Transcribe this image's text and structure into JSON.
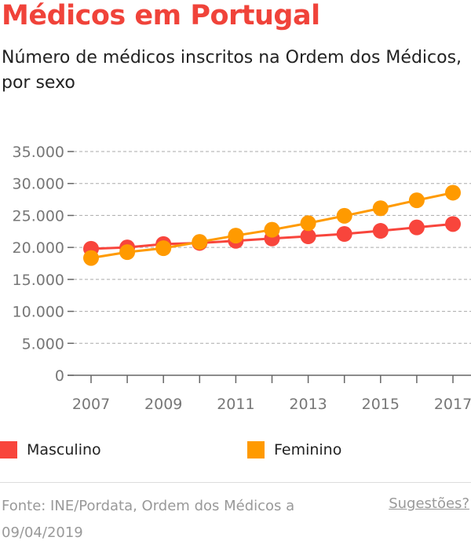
{
  "title": "Médicos em Portugal",
  "subtitle": "Número de médicos inscritos na Ordem dos Médicos, por sexo",
  "source": "Fonte: INE/Pordata, Ordem dos Médicos a 09/04/2019",
  "suggestions": "Sugestões?",
  "chart_data": {
    "type": "line",
    "x": [
      2007,
      2008,
      2009,
      2010,
      2011,
      2012,
      2013,
      2014,
      2015,
      2016,
      2017
    ],
    "xticks": [
      "2007",
      "2009",
      "2011",
      "2013",
      "2015",
      "2017"
    ],
    "yticks": [
      "0",
      "5.000",
      "10.000",
      "15.000",
      "20.000",
      "25.000",
      "30.000",
      "35.000"
    ],
    "ylim": [
      0,
      35000
    ],
    "grid": true,
    "legend": "bottom",
    "series": [
      {
        "name": "Masculino",
        "color": "#f8453c",
        "values": [
          19790,
          20000,
          20530,
          20700,
          21030,
          21400,
          21730,
          22100,
          22590,
          23130,
          23660
        ]
      },
      {
        "name": "Feminino",
        "color": "#ff9a00",
        "values": [
          18350,
          19260,
          19880,
          20860,
          21850,
          22760,
          23790,
          24940,
          26130,
          27370,
          28560
        ]
      }
    ]
  }
}
